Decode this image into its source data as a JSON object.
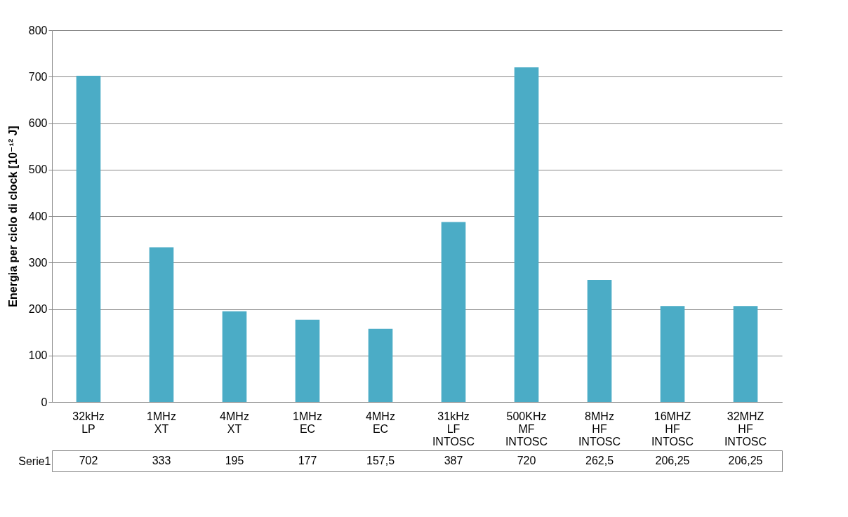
{
  "chart_data": {
    "type": "bar",
    "ylabel": "Energia  per ciclo di clock [10⁻¹² J]",
    "categories": [
      "32kHz LP",
      "1MHz XT",
      "4MHz XT",
      "1MHz EC",
      "4MHz EC",
      "31kHz LF INTOSC",
      "500KHz MF INTOSC",
      "8MHz HF INTOSC",
      "16MHZ HF INTOSC",
      "32MHZ HF INTOSC"
    ],
    "series": [
      {
        "name": "Serie1",
        "color": "#4bacc6",
        "values": [
          702,
          333,
          195,
          177,
          157.5,
          387,
          720,
          262.5,
          206.25,
          206.25
        ],
        "value_labels": [
          "702",
          "333",
          "195",
          "177",
          "157,5",
          "387",
          "720",
          "262,5",
          "206,25",
          "206,25"
        ]
      }
    ],
    "ylim": [
      0,
      800
    ],
    "yticks": [
      0,
      100,
      200,
      300,
      400,
      500,
      600,
      700,
      800
    ],
    "grid": "y"
  }
}
